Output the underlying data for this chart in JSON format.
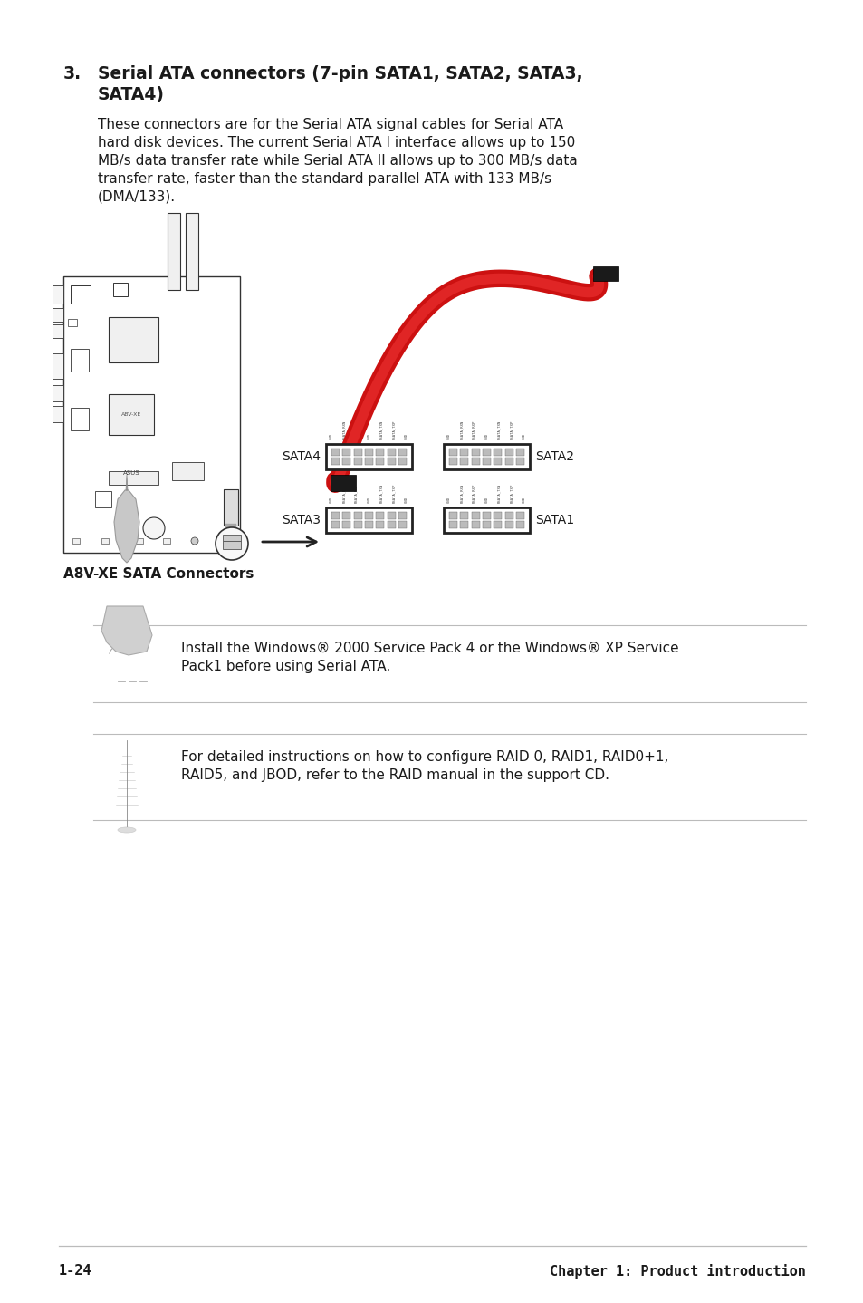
{
  "bg_color": "#ffffff",
  "text_color": "#1a1a1a",
  "heading_number": "3.",
  "heading_text_line1": "Serial ATA connectors (7-pin SATA1, SATA2, SATA3,",
  "heading_text_line2": "SATA4)",
  "body_lines": [
    "These connectors are for the Serial ATA signal cables for Serial ATA",
    "hard disk devices. The current Serial ATA I interface allows up to 150",
    "MB/s data transfer rate while Serial ATA II allows up to 300 MB/s data",
    "transfer rate, faster than the standard parallel ATA with 133 MB/s",
    "(DMA/133)."
  ],
  "caption_text": "A8V-XE SATA Connectors",
  "note1_text_line1": "Install the Windows® 2000 Service Pack 4 or the Windows® XP Service",
  "note1_text_line2": "Pack1 before using Serial ATA.",
  "note2_text_line1": "For detailed instructions on how to configure RAID 0, RAID1, RAID0+1,",
  "note2_text_line2": "RAID5, and JBOD, refer to the RAID manual in the support CD.",
  "footer_left": "1-24",
  "footer_right": "Chapter 1: Product introduction",
  "line_color": "#bbbbbb",
  "dark_color": "#222222",
  "gray_color": "#888888",
  "light_gray": "#e8e8e8",
  "red_cable": "#cc1111",
  "black_conn": "#1a1a1a",
  "mb_border": "#333333"
}
